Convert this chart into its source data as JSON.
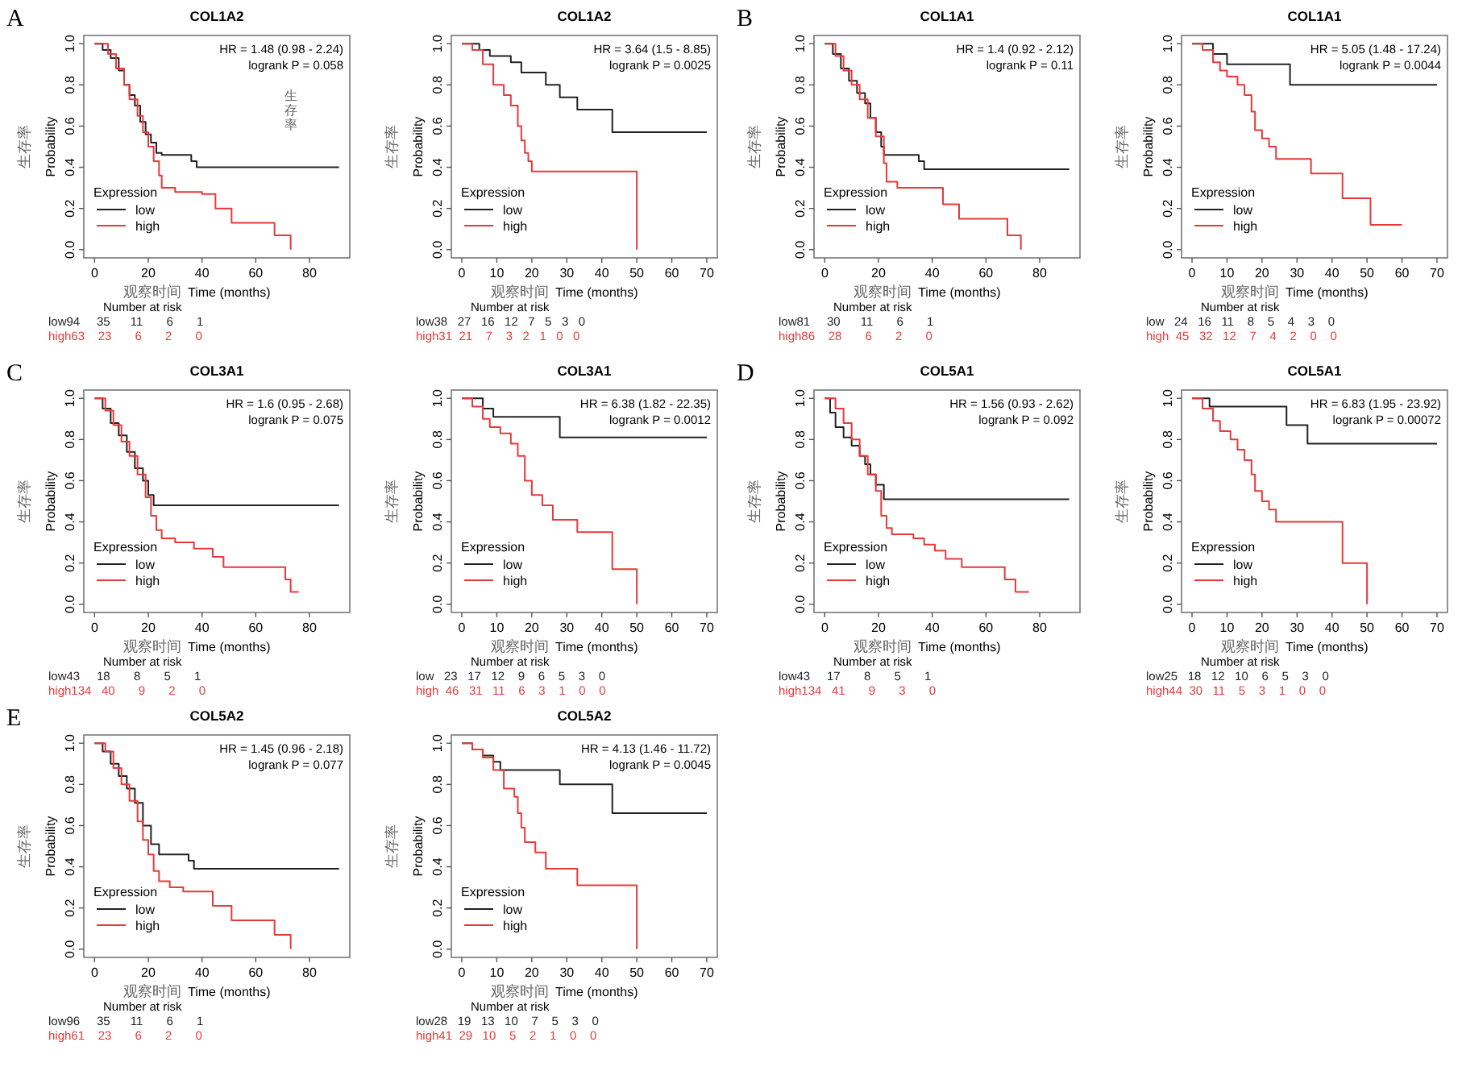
{
  "chart_data": [
    {
      "type": "step",
      "title": "COL1A2",
      "xlabel": "Time (months)",
      "ylabel": "Probability",
      "legend_title": "Expression",
      "legend": "bottom left",
      "xlim": [
        -4,
        95
      ],
      "ylim": [
        -0.04,
        1.04
      ],
      "xticks": [
        0,
        20,
        40,
        60,
        80
      ],
      "yticks": [
        {
          "value": 0,
          "label": "0.0"
        },
        {
          "value": 0.2,
          "label": "0.2"
        },
        {
          "value": 0.4,
          "label": "0.4"
        },
        {
          "value": 0.6,
          "label": "0.6"
        },
        {
          "value": 0.8,
          "label": "0.8"
        },
        {
          "value": 1,
          "label": "1.0"
        }
      ],
      "series": [
        {
          "name": "low",
          "color": "#222222",
          "x": [
            0,
            3,
            6,
            9,
            11,
            13,
            15,
            17,
            19,
            21,
            23,
            25,
            36,
            38,
            91
          ],
          "values": [
            1,
            0.97,
            0.93,
            0.87,
            0.8,
            0.75,
            0.7,
            0.62,
            0.56,
            0.52,
            0.47,
            0.46,
            0.43,
            0.4,
            0.4
          ]
        },
        {
          "name": "high",
          "color": "#e8393a",
          "x": [
            0,
            5,
            8,
            11,
            13,
            16,
            18,
            20,
            22,
            24,
            25,
            30,
            40,
            45,
            51,
            67,
            73
          ],
          "values": [
            1,
            0.95,
            0.88,
            0.8,
            0.73,
            0.65,
            0.57,
            0.5,
            0.43,
            0.36,
            0.3,
            0.28,
            0.27,
            0.2,
            0.13,
            0.07,
            0
          ]
        }
      ],
      "annotations": [
        "HR = 1.48 (0.98 - 2.24)",
        "logrank P = 0.058",
        "生存率",
        "观察时间",
        "Number at risk",
        "low94     35      11       6       1",
        "high63    23       6       2       0",
        "A",
        "生存率"
      ]
    },
    {
      "type": "step",
      "title": "COL1A2",
      "xlabel": "Time (months)",
      "ylabel": "Probability",
      "legend_title": "Expression",
      "legend": "bottom left",
      "xlim": [
        -3,
        73
      ],
      "ylim": [
        -0.04,
        1.04
      ],
      "xticks": [
        0,
        10,
        20,
        30,
        40,
        50,
        60,
        70
      ],
      "yticks": [
        {
          "value": 0,
          "label": "0.0"
        },
        {
          "value": 0.2,
          "label": "0.2"
        },
        {
          "value": 0.4,
          "label": "0.4"
        },
        {
          "value": 0.6,
          "label": "0.6"
        },
        {
          "value": 0.8,
          "label": "0.8"
        },
        {
          "value": 1,
          "label": "1.0"
        }
      ],
      "series": [
        {
          "name": "low",
          "color": "#222222",
          "x": [
            0,
            5,
            8,
            14,
            17,
            24,
            28,
            33,
            43,
            70
          ],
          "values": [
            1,
            0.97,
            0.94,
            0.91,
            0.86,
            0.8,
            0.74,
            0.68,
            0.57,
            0.57
          ]
        },
        {
          "name": "high",
          "color": "#e8393a",
          "x": [
            0,
            3,
            6,
            9,
            12,
            14,
            16,
            17,
            18,
            19,
            20,
            50,
            50
          ],
          "values": [
            1,
            0.97,
            0.9,
            0.8,
            0.75,
            0.7,
            0.6,
            0.53,
            0.47,
            0.43,
            0.38,
            0.38,
            0
          ]
        }
      ],
      "annotations": [
        "HR = 3.64 (1.5 - 8.85)",
        "logrank P = 0.0025",
        "生存率",
        "观察时间",
        "Number at risk",
        "low38   27   16   12   7   5   3   0",
        "high31  21    7    3   2   1   0   0"
      ]
    },
    {
      "type": "step",
      "title": "COL1A1",
      "xlabel": "Time (months)",
      "ylabel": "Probability",
      "legend_title": "Expression",
      "legend": "bottom left",
      "xlim": [
        -4,
        95
      ],
      "ylim": [
        -0.04,
        1.04
      ],
      "xticks": [
        0,
        20,
        40,
        60,
        80
      ],
      "yticks": [
        {
          "value": 0,
          "label": "0.0"
        },
        {
          "value": 0.2,
          "label": "0.2"
        },
        {
          "value": 0.4,
          "label": "0.4"
        },
        {
          "value": 0.6,
          "label": "0.6"
        },
        {
          "value": 0.8,
          "label": "0.8"
        },
        {
          "value": 1,
          "label": "1.0"
        }
      ],
      "series": [
        {
          "name": "low",
          "color": "#222222",
          "x": [
            0,
            3,
            6,
            9,
            12,
            15,
            17,
            19,
            21,
            22,
            35,
            37,
            91
          ],
          "values": [
            1,
            0.95,
            0.88,
            0.82,
            0.76,
            0.71,
            0.64,
            0.57,
            0.5,
            0.46,
            0.43,
            0.39,
            0.39
          ]
        },
        {
          "name": "high",
          "color": "#e8393a",
          "x": [
            0,
            4,
            7,
            10,
            13,
            16,
            19,
            22,
            23,
            27,
            44,
            50,
            68,
            73
          ],
          "values": [
            1,
            0.94,
            0.87,
            0.8,
            0.73,
            0.64,
            0.55,
            0.42,
            0.33,
            0.3,
            0.22,
            0.15,
            0.07,
            0
          ]
        }
      ],
      "annotations": [
        "HR = 1.4 (0.92 - 2.12)",
        "logrank P = 0.11",
        "生存率",
        "观察时间",
        "Number at risk",
        "low81     30      11       6       1",
        "high86    28       6       2       0",
        "B"
      ]
    },
    {
      "type": "step",
      "title": "COL1A1",
      "xlabel": "Time (months)",
      "ylabel": "Probability",
      "legend_title": "Expression",
      "legend": "bottom left",
      "xlim": [
        -3,
        73
      ],
      "ylim": [
        -0.04,
        1.04
      ],
      "xticks": [
        0,
        10,
        20,
        30,
        40,
        50,
        60,
        70
      ],
      "yticks": [
        {
          "value": 0,
          "label": "0.0"
        },
        {
          "value": 0.2,
          "label": "0.2"
        },
        {
          "value": 0.4,
          "label": "0.4"
        },
        {
          "value": 0.6,
          "label": "0.6"
        },
        {
          "value": 0.8,
          "label": "0.8"
        },
        {
          "value": 1,
          "label": "1.0"
        }
      ],
      "series": [
        {
          "name": "low",
          "color": "#222222",
          "x": [
            0,
            6,
            10,
            28,
            70
          ],
          "values": [
            1,
            0.95,
            0.9,
            0.8,
            0.8
          ]
        },
        {
          "name": "high",
          "color": "#e8393a",
          "x": [
            0,
            3,
            6,
            8,
            10,
            13,
            15,
            17,
            18,
            20,
            22,
            24,
            34,
            43,
            51,
            60
          ],
          "values": [
            1,
            0.97,
            0.91,
            0.87,
            0.84,
            0.8,
            0.75,
            0.67,
            0.58,
            0.54,
            0.5,
            0.44,
            0.37,
            0.25,
            0.12,
            0.12
          ]
        }
      ],
      "annotations": [
        "HR = 5.05 (1.48 - 17.24)",
        "logrank P = 0.0044",
        "生存率",
        "观察时间",
        "Number at risk",
        "low   24   16   11    8    5    4    3    0",
        "high  45   32   12    7    4    2    0    0"
      ]
    },
    {
      "type": "step",
      "title": "COL3A1",
      "xlabel": "Time (months)",
      "ylabel": "Probability",
      "legend_title": "Expression",
      "legend": "bottom left",
      "xlim": [
        -4,
        95
      ],
      "ylim": [
        -0.04,
        1.04
      ],
      "xticks": [
        0,
        20,
        40,
        60,
        80
      ],
      "yticks": [
        {
          "value": 0,
          "label": "0.0"
        },
        {
          "value": 0.2,
          "label": "0.2"
        },
        {
          "value": 0.4,
          "label": "0.4"
        },
        {
          "value": 0.6,
          "label": "0.6"
        },
        {
          "value": 0.8,
          "label": "0.8"
        },
        {
          "value": 1,
          "label": "1.0"
        }
      ],
      "series": [
        {
          "name": "low",
          "color": "#222222",
          "x": [
            0,
            3,
            6,
            9,
            12,
            15,
            18,
            20,
            22,
            91
          ],
          "values": [
            1,
            0.95,
            0.88,
            0.82,
            0.74,
            0.66,
            0.6,
            0.53,
            0.48,
            0.48
          ]
        },
        {
          "name": "high",
          "color": "#e8393a",
          "x": [
            0,
            4,
            7,
            10,
            13,
            16,
            19,
            21,
            23,
            25,
            30,
            37,
            44,
            48,
            60,
            71,
            73,
            76
          ],
          "values": [
            1,
            0.94,
            0.87,
            0.79,
            0.72,
            0.63,
            0.52,
            0.43,
            0.36,
            0.32,
            0.3,
            0.27,
            0.23,
            0.18,
            0.18,
            0.12,
            0.06,
            0.06
          ]
        }
      ],
      "annotations": [
        "HR = 1.6 (0.95 - 2.68)",
        "logrank P = 0.075",
        "生存率",
        "观察时间",
        "Number at risk",
        "low43     18       8       5       1",
        "high134   40       9       2       0",
        "C"
      ]
    },
    {
      "type": "step",
      "title": "COL3A1",
      "xlabel": "Time (months)",
      "ylabel": "Probability",
      "legend_title": "Expression",
      "legend": "bottom left",
      "xlim": [
        -3,
        73
      ],
      "ylim": [
        -0.04,
        1.04
      ],
      "xticks": [
        0,
        10,
        20,
        30,
        40,
        50,
        60,
        70
      ],
      "yticks": [
        {
          "value": 0,
          "label": "0.0"
        },
        {
          "value": 0.2,
          "label": "0.2"
        },
        {
          "value": 0.4,
          "label": "0.4"
        },
        {
          "value": 0.6,
          "label": "0.6"
        },
        {
          "value": 0.8,
          "label": "0.8"
        },
        {
          "value": 1,
          "label": "1.0"
        }
      ],
      "series": [
        {
          "name": "low",
          "color": "#222222",
          "x": [
            0,
            6,
            9,
            24,
            28,
            70
          ],
          "values": [
            1,
            0.95,
            0.91,
            0.91,
            0.81,
            0.81
          ]
        },
        {
          "name": "high",
          "color": "#e8393a",
          "x": [
            0,
            3,
            6,
            8,
            11,
            14,
            16,
            18,
            20,
            23,
            26,
            33,
            43,
            50,
            50
          ],
          "values": [
            1,
            0.96,
            0.9,
            0.86,
            0.83,
            0.78,
            0.72,
            0.6,
            0.53,
            0.48,
            0.41,
            0.35,
            0.17,
            0.17,
            0
          ]
        }
      ],
      "annotations": [
        "HR = 6.38 (1.82 - 22.35)",
        "logrank P = 0.0012",
        "生存率",
        "观察时间",
        "Number at risk",
        "low   23   17   12    9    6    5    3    0",
        "high  46   31   11    6    3    1    0    0"
      ]
    },
    {
      "type": "step",
      "title": "COL5A1",
      "xlabel": "Time (months)",
      "ylabel": "Probability",
      "legend_title": "Expression",
      "legend": "bottom left",
      "xlim": [
        -4,
        95
      ],
      "ylim": [
        -0.04,
        1.04
      ],
      "xticks": [
        0,
        20,
        40,
        60,
        80
      ],
      "yticks": [
        {
          "value": 0,
          "label": "0.0"
        },
        {
          "value": 0.2,
          "label": "0.2"
        },
        {
          "value": 0.4,
          "label": "0.4"
        },
        {
          "value": 0.6,
          "label": "0.6"
        },
        {
          "value": 0.8,
          "label": "0.8"
        },
        {
          "value": 1,
          "label": "1.0"
        }
      ],
      "series": [
        {
          "name": "low",
          "color": "#222222",
          "x": [
            0,
            2,
            4,
            7,
            10,
            13,
            15,
            17,
            19,
            22,
            91
          ],
          "values": [
            1,
            0.93,
            0.86,
            0.81,
            0.77,
            0.72,
            0.68,
            0.63,
            0.58,
            0.51,
            0.51
          ]
        },
        {
          "name": "high",
          "color": "#e8393a",
          "x": [
            0,
            4,
            7,
            10,
            13,
            16,
            19,
            21,
            23,
            25,
            33,
            37,
            41,
            45,
            51,
            67,
            71,
            76
          ],
          "values": [
            1,
            0.95,
            0.88,
            0.8,
            0.72,
            0.63,
            0.55,
            0.43,
            0.37,
            0.34,
            0.32,
            0.29,
            0.26,
            0.22,
            0.18,
            0.12,
            0.06,
            0.06
          ]
        }
      ],
      "annotations": [
        "HR = 1.56 (0.93 - 2.62)",
        "logrank P = 0.092",
        "生存率",
        "观察时间",
        "Number at risk",
        "low43     17       8       5       1",
        "high134   41       9       3       0",
        "D"
      ]
    },
    {
      "type": "step",
      "title": "COL5A1",
      "xlabel": "Time (months)",
      "ylabel": "Probability",
      "legend_title": "Expression",
      "legend": "bottom left",
      "xlim": [
        -3,
        73
      ],
      "ylim": [
        -0.04,
        1.04
      ],
      "xticks": [
        0,
        10,
        20,
        30,
        40,
        50,
        60,
        70
      ],
      "yticks": [
        {
          "value": 0,
          "label": "0.0"
        },
        {
          "value": 0.2,
          "label": "0.2"
        },
        {
          "value": 0.4,
          "label": "0.4"
        },
        {
          "value": 0.6,
          "label": "0.6"
        },
        {
          "value": 0.8,
          "label": "0.8"
        },
        {
          "value": 1,
          "label": "1.0"
        }
      ],
      "series": [
        {
          "name": "low",
          "color": "#222222",
          "x": [
            0,
            5,
            27,
            33,
            70
          ],
          "values": [
            1,
            0.96,
            0.87,
            0.78,
            0.78
          ]
        },
        {
          "name": "high",
          "color": "#e8393a",
          "x": [
            0,
            3,
            6,
            8,
            11,
            13,
            15,
            17,
            18,
            20,
            22,
            24,
            43,
            50,
            50
          ],
          "values": [
            1,
            0.95,
            0.89,
            0.84,
            0.8,
            0.75,
            0.7,
            0.63,
            0.55,
            0.5,
            0.46,
            0.4,
            0.2,
            0.2,
            0
          ]
        }
      ],
      "annotations": [
        "HR = 6.83 (1.95 - 23.92)",
        "logrank P = 0.00072",
        "生存率",
        "观察时间",
        "Number at risk",
        "low25   18   12   10    6    5    3    0",
        "high44  30   11    5    3    1    0    0"
      ]
    },
    {
      "type": "step",
      "title": "COL5A2",
      "xlabel": "Time (months)",
      "ylabel": "Probability",
      "legend_title": "Expression",
      "legend": "bottom left",
      "xlim": [
        -4,
        95
      ],
      "ylim": [
        -0.04,
        1.04
      ],
      "xticks": [
        0,
        20,
        40,
        60,
        80
      ],
      "yticks": [
        {
          "value": 0,
          "label": "0.0"
        },
        {
          "value": 0.2,
          "label": "0.2"
        },
        {
          "value": 0.4,
          "label": "0.4"
        },
        {
          "value": 0.6,
          "label": "0.6"
        },
        {
          "value": 0.8,
          "label": "0.8"
        },
        {
          "value": 1,
          "label": "1.0"
        }
      ],
      "series": [
        {
          "name": "low",
          "color": "#222222",
          "x": [
            0,
            3,
            6,
            9,
            12,
            15,
            18,
            21,
            24,
            35,
            37,
            91
          ],
          "values": [
            1,
            0.96,
            0.9,
            0.84,
            0.78,
            0.71,
            0.6,
            0.51,
            0.46,
            0.43,
            0.39,
            0.39
          ]
        },
        {
          "name": "high",
          "color": "#e8393a",
          "x": [
            0,
            4,
            7,
            10,
            13,
            16,
            18,
            20,
            22,
            24,
            28,
            33,
            44,
            51,
            67,
            73
          ],
          "values": [
            1,
            0.96,
            0.88,
            0.8,
            0.72,
            0.62,
            0.53,
            0.46,
            0.38,
            0.33,
            0.3,
            0.28,
            0.21,
            0.14,
            0.07,
            0
          ]
        }
      ],
      "annotations": [
        "HR = 1.45 (0.96 - 2.18)",
        "logrank P = 0.077",
        "生存率",
        "观察时间",
        "Number at risk",
        "low96     35      11       6       1",
        "high61    23       6       2       0",
        "E"
      ]
    },
    {
      "type": "step",
      "title": "COL5A2",
      "xlabel": "Time (months)",
      "ylabel": "Probability",
      "legend_title": "Expression",
      "legend": "bottom left",
      "xlim": [
        -3,
        73
      ],
      "ylim": [
        -0.04,
        1.04
      ],
      "xticks": [
        0,
        10,
        20,
        30,
        40,
        50,
        60,
        70
      ],
      "yticks": [
        {
          "value": 0,
          "label": "0.0"
        },
        {
          "value": 0.2,
          "label": "0.2"
        },
        {
          "value": 0.4,
          "label": "0.4"
        },
        {
          "value": 0.6,
          "label": "0.6"
        },
        {
          "value": 0.8,
          "label": "0.8"
        },
        {
          "value": 1,
          "label": "1.0"
        }
      ],
      "series": [
        {
          "name": "low",
          "color": "#222222",
          "x": [
            0,
            3,
            6,
            9,
            11,
            28,
            43,
            70
          ],
          "values": [
            1,
            0.97,
            0.94,
            0.91,
            0.87,
            0.8,
            0.66,
            0.66
          ]
        },
        {
          "name": "high",
          "color": "#e8393a",
          "x": [
            0,
            3,
            6,
            9,
            12,
            15,
            16,
            17,
            18,
            21,
            24,
            33,
            50,
            50
          ],
          "values": [
            1,
            0.97,
            0.93,
            0.87,
            0.78,
            0.74,
            0.66,
            0.59,
            0.52,
            0.47,
            0.39,
            0.31,
            0.31,
            0
          ]
        }
      ],
      "annotations": [
        "HR = 4.13 (1.46 - 11.72)",
        "logrank P = 0.0045",
        "生存率",
        "观察时间",
        "Number at risk",
        "low28   19   13   10    7    5    3    0",
        "high41  29   10    5    2    1    0    0"
      ]
    }
  ]
}
